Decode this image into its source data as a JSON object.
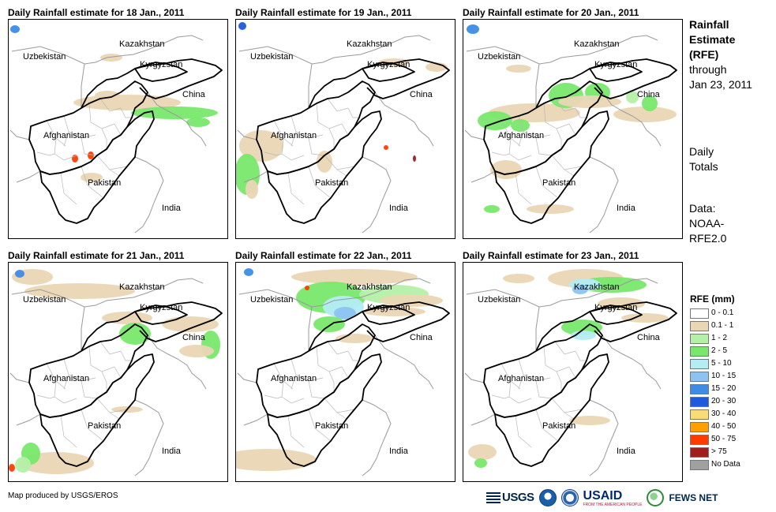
{
  "panels": [
    {
      "title": "Daily Rainfall estimate for 18 Jan., 2011"
    },
    {
      "title": "Daily Rainfall estimate for 19 Jan., 2011"
    },
    {
      "title": "Daily Rainfall estimate for 20 Jan., 2011"
    },
    {
      "title": "Daily Rainfall estimate for 21 Jan., 2011"
    },
    {
      "title": "Daily Rainfall estimate for 22 Jan., 2011"
    },
    {
      "title": "Daily Rainfall estimate for 23 Jan., 2011"
    }
  ],
  "map_labels": {
    "kazakhstan": "Kazakhstan",
    "uzbekistan": "Uzbekistan",
    "kyrgyzstan": "Kyrgyzstan",
    "china": "China",
    "afghanistan": "Afghanistan",
    "pakistan": "Pakistan",
    "india": "India"
  },
  "side": {
    "title_lines": [
      "Rainfall",
      "Estimate",
      "(RFE)"
    ],
    "through": "through",
    "through_date": "Jan 23, 2011",
    "daily_totals_lines": [
      "Daily",
      "Totals"
    ],
    "data_lines": [
      "Data:",
      "NOAA-",
      "RFE2.0"
    ]
  },
  "legend": {
    "title": "RFE (mm)",
    "items": [
      {
        "label": "0 - 0.1",
        "color": "#ffffff"
      },
      {
        "label": "0.1 - 1",
        "color": "#ead6b4"
      },
      {
        "label": "1 - 2",
        "color": "#b4f0a8"
      },
      {
        "label": "2 - 5",
        "color": "#78e86c"
      },
      {
        "label": "5 - 10",
        "color": "#b4ecf4"
      },
      {
        "label": "10 - 15",
        "color": "#8cc3f2"
      },
      {
        "label": "15 - 20",
        "color": "#3c8ce6"
      },
      {
        "label": "20 - 30",
        "color": "#1e5adc"
      },
      {
        "label": "30 - 40",
        "color": "#f8dc78"
      },
      {
        "label": "40 - 50",
        "color": "#ffa000"
      },
      {
        "label": "50 - 75",
        "color": "#ff3c00"
      },
      {
        "label": "> 75",
        "color": "#a01e1e"
      },
      {
        "label": "No Data",
        "color": "#a0a0a0"
      }
    ]
  },
  "footer": {
    "credit": "Map produced by USGS/EROS"
  },
  "logos": {
    "usgs": "USGS",
    "usaid": "USAID",
    "usaid_tagline": "FROM THE AMERICAN PEOPLE",
    "fews": "FEWS NET"
  }
}
